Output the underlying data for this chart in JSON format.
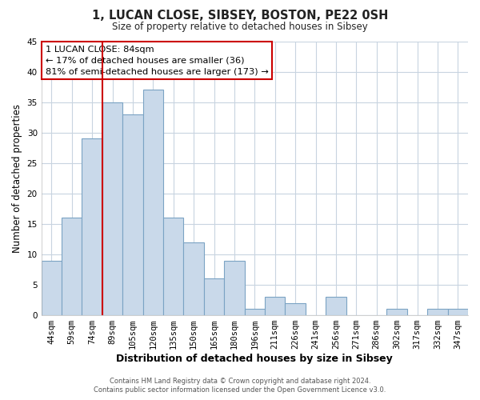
{
  "title": "1, LUCAN CLOSE, SIBSEY, BOSTON, PE22 0SH",
  "subtitle": "Size of property relative to detached houses in Sibsey",
  "xlabel": "Distribution of detached houses by size in Sibsey",
  "ylabel": "Number of detached properties",
  "bar_labels": [
    "44sqm",
    "59sqm",
    "74sqm",
    "89sqm",
    "105sqm",
    "120sqm",
    "135sqm",
    "150sqm",
    "165sqm",
    "180sqm",
    "196sqm",
    "211sqm",
    "226sqm",
    "241sqm",
    "256sqm",
    "271sqm",
    "286sqm",
    "302sqm",
    "317sqm",
    "332sqm",
    "347sqm"
  ],
  "bar_values": [
    9,
    16,
    29,
    35,
    33,
    37,
    16,
    12,
    6,
    9,
    1,
    3,
    2,
    0,
    3,
    0,
    0,
    1,
    0,
    1,
    1
  ],
  "bar_color": "#c9d9ea",
  "bar_edge_color": "#7ba3c4",
  "vline_x_index": 3,
  "vline_color": "#cc0000",
  "ylim": [
    0,
    45
  ],
  "yticks": [
    0,
    5,
    10,
    15,
    20,
    25,
    30,
    35,
    40,
    45
  ],
  "annotation_title": "1 LUCAN CLOSE: 84sqm",
  "annotation_line1": "← 17% of detached houses are smaller (36)",
  "annotation_line2": "81% of semi-detached houses are larger (173) →",
  "annotation_box_color": "#ffffff",
  "annotation_box_edge": "#cc0000",
  "footer1": "Contains HM Land Registry data © Crown copyright and database right 2024.",
  "footer2": "Contains public sector information licensed under the Open Government Licence v3.0.",
  "bg_color": "#ffffff",
  "grid_color": "#c8d4e0"
}
